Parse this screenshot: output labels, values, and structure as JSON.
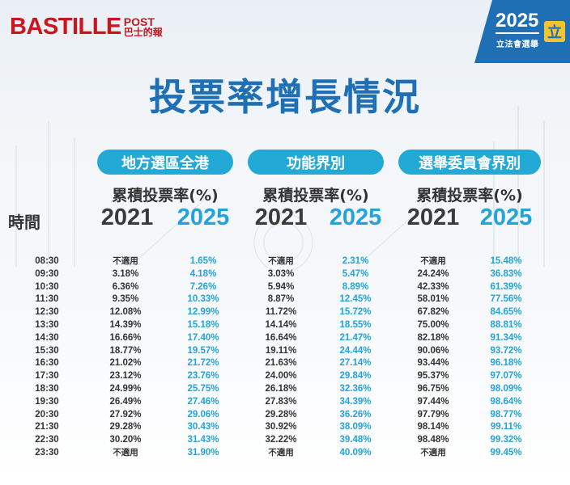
{
  "header": {
    "logo_main": "BASTILLE",
    "logo_post": "POST",
    "logo_cn": "巴士的報",
    "badge_year": "2025",
    "badge_sub": "立法會選舉",
    "badge_icon": "立",
    "title": "投票率增長情況"
  },
  "table": {
    "groups": [
      {
        "name": "地方選區全港",
        "subheader": "累積投票率(%)",
        "year_a": "2021",
        "year_b": "2025"
      },
      {
        "name": "功能界別",
        "subheader": "累積投票率(%)",
        "year_a": "2021",
        "year_b": "2025"
      },
      {
        "name": "選舉委員會界別",
        "subheader": "累積投票率(%)",
        "year_a": "2021",
        "year_b": "2025"
      }
    ],
    "time_label": "時間",
    "rows": [
      {
        "time": "08:30",
        "a21": "不適用",
        "a25": "1.65%",
        "b21": "不適用",
        "b25": "2.31%",
        "c21": "不適用",
        "c25": "15.48%"
      },
      {
        "time": "09:30",
        "a21": "3.18%",
        "a25": "4.18%",
        "b21": "3.03%",
        "b25": "5.47%",
        "c21": "24.24%",
        "c25": "36.83%"
      },
      {
        "time": "10:30",
        "a21": "6.36%",
        "a25": "7.26%",
        "b21": "5.94%",
        "b25": "8.89%",
        "c21": "42.33%",
        "c25": "61.39%"
      },
      {
        "time": "11:30",
        "a21": "9.35%",
        "a25": "10.33%",
        "b21": "8.87%",
        "b25": "12.45%",
        "c21": "58.01%",
        "c25": "77.56%"
      },
      {
        "time": "12:30",
        "a21": "12.08%",
        "a25": "12.99%",
        "b21": "11.72%",
        "b25": "15.72%",
        "c21": "67.82%",
        "c25": "84.65%"
      },
      {
        "time": "13:30",
        "a21": "14.39%",
        "a25": "15.18%",
        "b21": "14.14%",
        "b25": "18.55%",
        "c21": "75.00%",
        "c25": "88.81%"
      },
      {
        "time": "14:30",
        "a21": "16.66%",
        "a25": "17.40%",
        "b21": "16.64%",
        "b25": "21.47%",
        "c21": "82.18%",
        "c25": "91.34%"
      },
      {
        "time": "15:30",
        "a21": "18.77%",
        "a25": "19.57%",
        "b21": "19.11%",
        "b25": "24.44%",
        "c21": "90.06%",
        "c25": "93.72%"
      },
      {
        "time": "16:30",
        "a21": "21.02%",
        "a25": "21.72%",
        "b21": "21.63%",
        "b25": "27.14%",
        "c21": "93.44%",
        "c25": "96.18%"
      },
      {
        "time": "17:30",
        "a21": "23.12%",
        "a25": "23.76%",
        "b21": "24.00%",
        "b25": "29.84%",
        "c21": "95.37%",
        "c25": "97.07%"
      },
      {
        "time": "18:30",
        "a21": "24.99%",
        "a25": "25.75%",
        "b21": "26.18%",
        "b25": "32.36%",
        "c21": "96.75%",
        "c25": "98.09%"
      },
      {
        "time": "19:30",
        "a21": "26.49%",
        "a25": "27.46%",
        "b21": "27.83%",
        "b25": "34.39%",
        "c21": "97.44%",
        "c25": "98.64%"
      },
      {
        "time": "20:30",
        "a21": "27.92%",
        "a25": "29.06%",
        "b21": "29.28%",
        "b25": "36.26%",
        "c21": "97.79%",
        "c25": "98.77%"
      },
      {
        "time": "21:30",
        "a21": "29.28%",
        "a25": "30.43%",
        "b21": "30.92%",
        "b25": "38.09%",
        "c21": "98.14%",
        "c25": "99.11%"
      },
      {
        "time": "22:30",
        "a21": "30.20%",
        "a25": "31.43%",
        "b21": "32.22%",
        "b25": "39.48%",
        "c21": "98.48%",
        "c25": "99.32%"
      },
      {
        "time": "23:30",
        "a21": "不適用",
        "a25": "31.90%",
        "b21": "不適用",
        "b25": "40.09%",
        "c21": "不適用",
        "c25": "99.45%"
      }
    ]
  }
}
